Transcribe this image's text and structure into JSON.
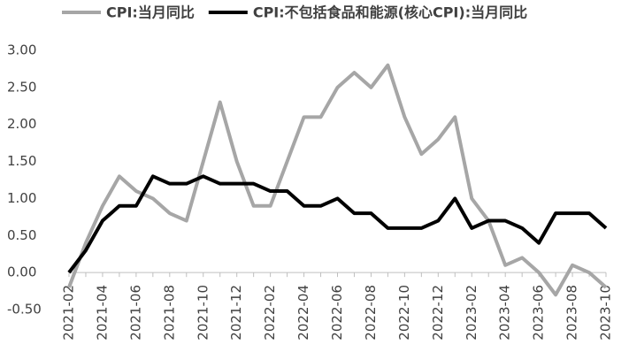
{
  "chart_data": {
    "type": "line",
    "categories": [
      "2021-02",
      null,
      "2021-04",
      null,
      "2021-06",
      null,
      "2021-08",
      null,
      "2021-10",
      null,
      "2021-12",
      null,
      "2022-02",
      null,
      "2022-04",
      null,
      "2022-06",
      null,
      "2022-08",
      null,
      "2022-10",
      null,
      "2022-12",
      null,
      "2023-02",
      null,
      "2023-04",
      null,
      "2023-06",
      null,
      "2023-08",
      null,
      "2023-10"
    ],
    "series": [
      {
        "name": "CPI:当月同比",
        "color": "#a6a6a6",
        "values": [
          -0.2,
          0.4,
          0.9,
          1.3,
          1.1,
          1.0,
          0.8,
          0.7,
          1.5,
          2.3,
          1.5,
          0.9,
          0.9,
          1.5,
          2.1,
          2.1,
          2.5,
          2.7,
          2.5,
          2.8,
          2.1,
          1.6,
          1.8,
          2.1,
          1.0,
          0.7,
          0.1,
          0.2,
          0.0,
          -0.3,
          0.1,
          0.0,
          -0.2
        ]
      },
      {
        "name": "CPI:不包括食品和能源(核心CPI):当月同比",
        "color": "#000000",
        "values": [
          0.0,
          0.3,
          0.7,
          0.9,
          0.9,
          1.3,
          1.2,
          1.2,
          1.3,
          1.2,
          1.2,
          1.2,
          1.1,
          1.1,
          0.9,
          0.9,
          1.0,
          0.8,
          0.8,
          0.6,
          0.6,
          0.6,
          0.7,
          1.0,
          0.6,
          0.7,
          0.7,
          0.6,
          0.4,
          0.8,
          0.8,
          0.8,
          0.6
        ]
      }
    ],
    "ylim": [
      -0.5,
      3.0
    ],
    "yticks": [
      {
        "value": -0.5,
        "label": "-0.50"
      },
      {
        "value": 0,
        "label": "0.00"
      },
      {
        "value": 0.5,
        "label": "0.50"
      },
      {
        "value": 1,
        "label": "1.00"
      },
      {
        "value": 1.5,
        "label": "1.50"
      },
      {
        "value": 2,
        "label": "2.00"
      },
      {
        "value": 2.5,
        "label": "2.50"
      },
      {
        "value": 3,
        "label": "3.00"
      }
    ],
    "grid": false,
    "legend": "top"
  }
}
